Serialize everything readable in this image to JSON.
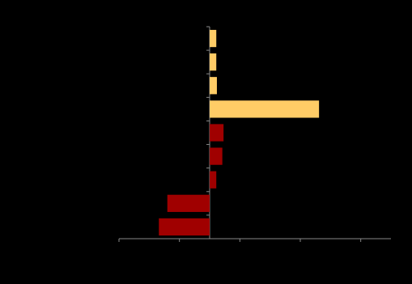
{
  "chart_data": {
    "type": "barh",
    "categories": [
      null,
      null,
      null,
      null,
      null,
      null,
      null,
      null,
      null
    ],
    "values": [
      0.11,
      0.11,
      0.12,
      1.81,
      0.23,
      0.21,
      0.11,
      -0.7,
      -0.84
    ],
    "colors": [
      "#ffcc66",
      "#ffcc66",
      "#ffcc66",
      "#ffcc66",
      "#a00000",
      "#a00000",
      "#a00000",
      "#a00000",
      "#a00000"
    ],
    "xlim": [
      -1.5,
      3
    ],
    "xticks": [
      -1.5,
      -0.5,
      0.5,
      1.5,
      2.5
    ]
  }
}
